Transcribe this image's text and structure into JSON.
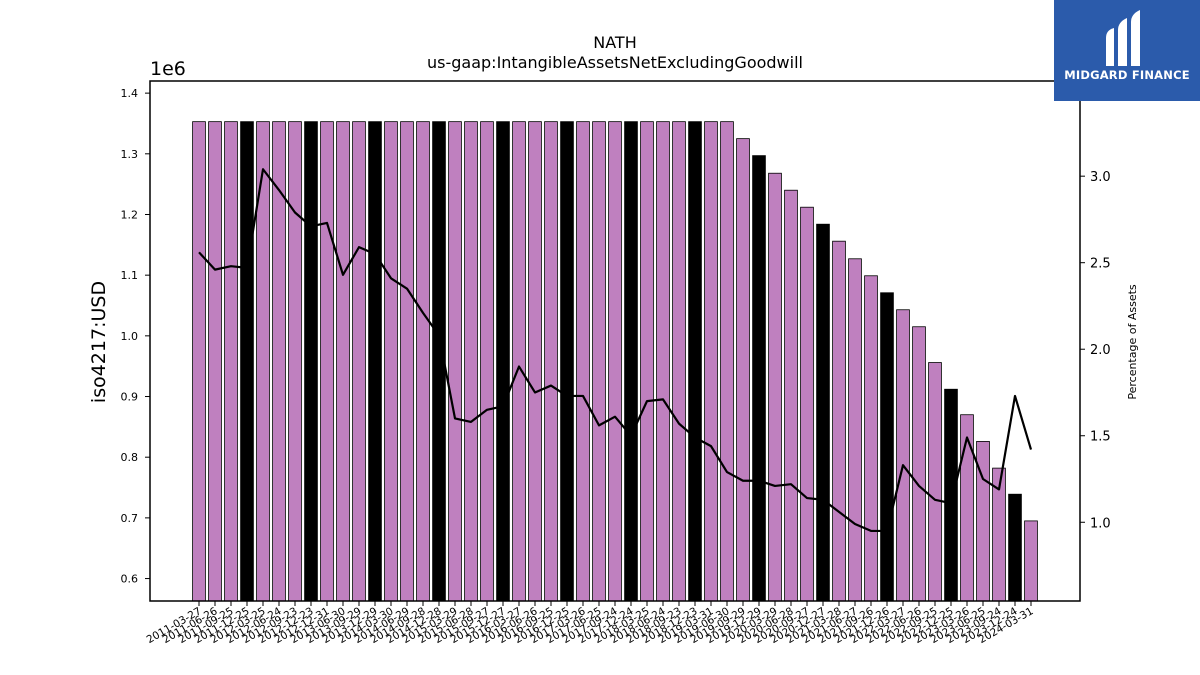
{
  "chart_data": {
    "type": "bar",
    "title": "NATH",
    "subtitle": "us-gaap:IntangibleAssetsNetExcludingGoodwill",
    "ylabel": "iso4217:USD",
    "y_offset_label": "1e6",
    "y2label": "Percentage of Assets",
    "ylim": [
      563000,
      1420000
    ],
    "y2lim": [
      0.545,
      3.55
    ],
    "y_ticks": [
      "0.6",
      "0.7",
      "0.8",
      "0.9",
      "1.0",
      "1.1",
      "1.2",
      "1.3",
      "1.4"
    ],
    "y2_ticks": [
      "1.0",
      "1.5",
      "2.0",
      "2.5",
      "3.0"
    ],
    "grid": false,
    "colors": {
      "bar": "#bf80bf",
      "bar_q4": "#000000",
      "line": "#000000",
      "edge": "#000000"
    },
    "categories": [
      "2011-03-27",
      "2011-06-26",
      "2011-09-25",
      "2011-12-25",
      "2012-03-25",
      "2012-06-24",
      "2012-09-23",
      "2012-12-23",
      "2012-12-31",
      "2013-06-30",
      "2013-09-29",
      "2013-12-29",
      "2014-03-30",
      "2014-06-29",
      "2014-09-28",
      "2014-12-28",
      "2015-03-29",
      "2015-06-28",
      "2015-09-27",
      "2015-12-27",
      "2016-03-27",
      "2016-06-26",
      "2016-09-25",
      "2016-12-25",
      "2017-03-26",
      "2017-06-25",
      "2017-09-24",
      "2017-12-24",
      "2018-03-25",
      "2018-06-24",
      "2018-09-23",
      "2018-12-23",
      "2019-03-31",
      "2019-06-30",
      "2019-09-29",
      "2019-12-29",
      "2020-03-29",
      "2020-06-28",
      "2020-09-27",
      "2020-12-27",
      "2021-03-28",
      "2021-06-27",
      "2021-09-26",
      "2021-12-26",
      "2022-03-27",
      "2022-06-26",
      "2022-09-25",
      "2022-12-25",
      "2023-03-26",
      "2023-06-25",
      "2023-09-24",
      "2023-12-24",
      "2024-03-31"
    ],
    "highlight_indices": [
      3,
      7,
      11,
      15,
      19,
      23,
      27,
      31,
      35,
      39,
      43,
      47,
      51
    ],
    "values": [
      1353000,
      1353000,
      1353000,
      1353000,
      1353000,
      1353000,
      1353000,
      1353000,
      1353000,
      1353000,
      1353000,
      1353000,
      1353000,
      1353000,
      1353000,
      1353000,
      1353000,
      1353000,
      1353000,
      1353000,
      1353000,
      1353000,
      1353000,
      1353000,
      1353000,
      1353000,
      1353000,
      1353000,
      1353000,
      1353000,
      1353000,
      1353000,
      1353000,
      1353000,
      1325000,
      1297000,
      1268000,
      1240000,
      1212000,
      1184000,
      1156000,
      1127000,
      1099000,
      1071000,
      1043000,
      1015000,
      956000,
      912000,
      870000,
      826000,
      782000,
      739000,
      695000
    ],
    "series": [
      {
        "axis": "right",
        "values": [
          2.56,
          2.46,
          2.48,
          2.47,
          3.04,
          2.92,
          2.79,
          2.71,
          2.73,
          2.43,
          2.59,
          2.55,
          2.41,
          2.35,
          2.21,
          2.08,
          1.6,
          1.58,
          1.65,
          1.67,
          1.9,
          1.75,
          1.79,
          1.73,
          1.73,
          1.56,
          1.61,
          1.5,
          1.7,
          1.71,
          1.57,
          1.49,
          1.44,
          1.29,
          1.24,
          1.24,
          1.21,
          1.22,
          1.14,
          1.13,
          1.06,
          0.99,
          0.95,
          0.95,
          1.33,
          1.21,
          1.13,
          1.11,
          1.49,
          1.25,
          1.19,
          1.73,
          1.42
        ]
      }
    ]
  },
  "logo": {
    "text": "MIDGARD FINANCE"
  }
}
